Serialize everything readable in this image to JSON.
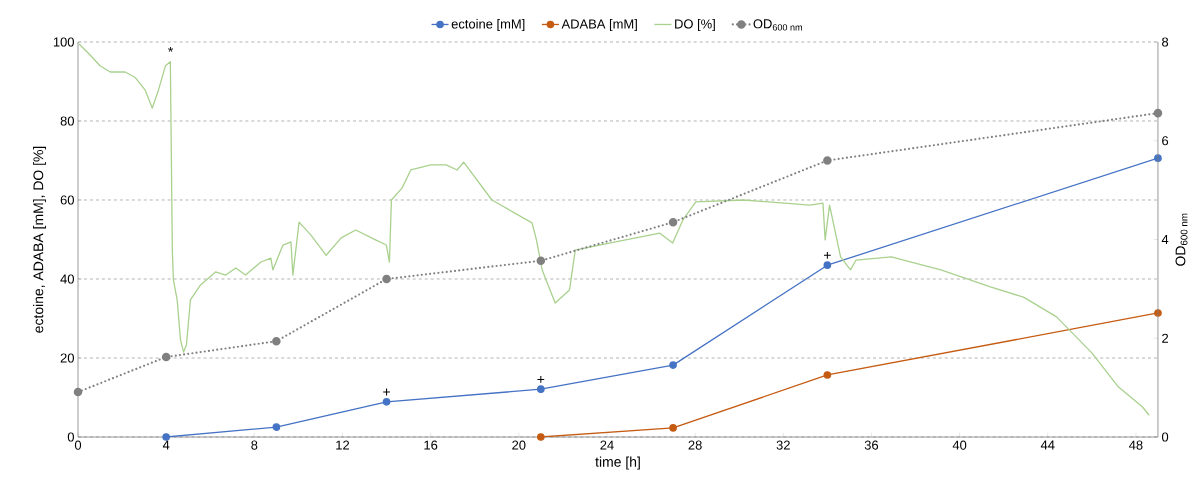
{
  "chart_data": {
    "type": "line",
    "xlabel": "time [h]",
    "ylabel": "ectoine, ADABA [mM], DO [%]",
    "y2label": "OD$_{600 nm}$",
    "xlim": [
      0,
      49
    ],
    "xticks": [
      0,
      4,
      8,
      12,
      16,
      20,
      24,
      28,
      32,
      36,
      40,
      44,
      48
    ],
    "ylim": [
      0,
      100
    ],
    "yticks": [
      0,
      20,
      40,
      60,
      80,
      100
    ],
    "y2lim": [
      0,
      8
    ],
    "y2ticks": [
      0,
      2,
      4,
      6,
      8
    ],
    "grid": "y",
    "legend": "top",
    "series": [
      {
        "name": "ectoine [mM]",
        "color": "#4472c4",
        "marker": "circle",
        "line_style": "solid",
        "x": [
          4,
          9,
          14,
          21,
          27,
          34,
          49
        ],
        "values": [
          0,
          2.5,
          8.9,
          12.1,
          18.2,
          43.5,
          70.6
        ]
      },
      {
        "name": "ADABA [mM]",
        "color": "#c55a11",
        "marker": "circle",
        "line_style": "solid",
        "x": [
          21,
          27,
          34,
          49
        ],
        "values": [
          0,
          2.3,
          15.7,
          31.4
        ]
      },
      {
        "name": "DO [%]",
        "color": "#a9d18e",
        "marker": "none",
        "line_style": "solid",
        "x": [
          0.05,
          0.55,
          1.0,
          1.46,
          2.14,
          2.6,
          3.05,
          3.37,
          3.65,
          3.97,
          4.19,
          4.28,
          4.33,
          4.5,
          4.65,
          4.79,
          4.92,
          5.1,
          5.56,
          6.24,
          6.7,
          7.16,
          7.6,
          8.3,
          8.75,
          8.84,
          9.3,
          9.66,
          9.75,
          10.03,
          10.57,
          11.26,
          11.94,
          12.6,
          13.5,
          13.99,
          14.13,
          14.22,
          14.7,
          15.1,
          16.0,
          16.7,
          17.2,
          17.5,
          18.78,
          20.6,
          20.8,
          21.06,
          21.65,
          22.3,
          22.56,
          24.1,
          26.4,
          26.98,
          27.44,
          28.03,
          30.2,
          33.2,
          33.8,
          33.9,
          34.1,
          34.6,
          35.05,
          35.3,
          36.9,
          39.15,
          41.4,
          42.9,
          44.4,
          46.0,
          47.2,
          48.3,
          48.6
        ],
        "values": [
          99.5,
          96.7,
          94,
          92.4,
          92.4,
          91,
          87.8,
          83.3,
          87.8,
          94,
          95,
          47.3,
          39.7,
          34.7,
          24.6,
          21.5,
          23.3,
          34.7,
          38.5,
          41.8,
          41,
          42.8,
          41,
          44.3,
          45.3,
          42.3,
          48.6,
          49.4,
          41,
          54.4,
          51.1,
          46,
          50.4,
          52.4,
          49.9,
          48.6,
          44.3,
          60,
          63,
          67.6,
          68.9,
          68.9,
          67.6,
          69.6,
          60,
          54.2,
          49.9,
          42.3,
          33.9,
          37.2,
          47.3,
          49.1,
          51.6,
          49.1,
          54.9,
          59.5,
          60,
          58.7,
          59.2,
          49.9,
          58.7,
          45.6,
          42.3,
          44.8,
          45.6,
          42.3,
          38,
          35.4,
          30.4,
          21.3,
          12.7,
          7.6,
          5.5
        ]
      },
      {
        "name": "OD$_{600 nm}$",
        "color": "#808080",
        "marker": "circle",
        "line_style": "dotted",
        "axis": "y2",
        "x": [
          0,
          4,
          9,
          14,
          21,
          27,
          34,
          49
        ],
        "values": [
          0.91,
          1.62,
          1.94,
          3.2,
          3.57,
          4.35,
          5.6,
          6.56
        ]
      }
    ],
    "annotations": [
      {
        "text": "*",
        "x": 4.2,
        "y": 95
      },
      {
        "text": "+",
        "x": 14,
        "y": 8.9
      },
      {
        "text": "+",
        "x": 21,
        "y": 12.1
      },
      {
        "text": "+",
        "x": 34,
        "y": 43.5
      }
    ]
  }
}
